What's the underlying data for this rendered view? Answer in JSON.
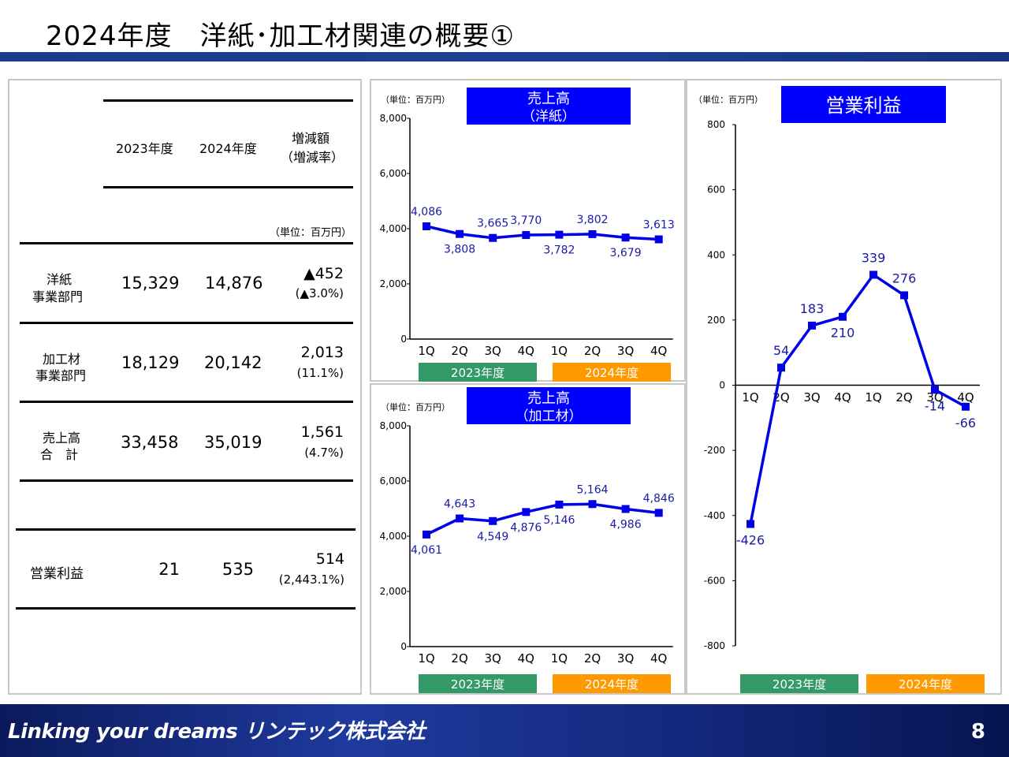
{
  "page": {
    "title": "2024年度　洋紙･加工材関連の概要①",
    "footer_tagline": "Linking your dreams  リンテック株式会社",
    "page_number": "8"
  },
  "table": {
    "header_2023": "2023年度",
    "header_2024": "2024年度",
    "header_change_1": "増減額",
    "header_change_2": "（増減率）",
    "unit": "（単位：百万円）",
    "rows": [
      {
        "label_1": "洋紙",
        "label_2": "事業部門",
        "v2023": "15,329",
        "v2024": "14,876",
        "change": "▲452",
        "rate": "(▲3.0%)"
      },
      {
        "label_1": "加工材",
        "label_2": "事業部門",
        "v2023": "18,129",
        "v2024": "20,142",
        "change": "2,013",
        "rate": "(11.1%)"
      },
      {
        "label_1": "売上高",
        "label_2": "合　計",
        "v2023": "33,458",
        "v2024": "35,019",
        "change": "1,561",
        "rate": "(4.7%)"
      }
    ],
    "op_row": {
      "label": "営業利益",
      "v2023": "21",
      "v2024": "535",
      "change": "514",
      "rate": "(2,443.1%)"
    }
  },
  "colors": {
    "series": "#0000e6",
    "label": "#1a1aa6",
    "title_box": "#0000ff",
    "fy2023_band": "#339966",
    "fy2024_band": "#ff9900",
    "title_bar": "#1b3f93"
  },
  "chart_data": [
    {
      "type": "line",
      "title_1": "売上高",
      "title_2": "（洋紙）",
      "unit": "（単位：百万円）",
      "x": [
        "1Q",
        "2Q",
        "3Q",
        "4Q",
        "1Q",
        "2Q",
        "3Q",
        "4Q"
      ],
      "values": [
        4086,
        3808,
        3665,
        3770,
        3782,
        3802,
        3679,
        3613
      ],
      "value_labels": [
        "4,086",
        "3,808",
        "3,665",
        "3,770",
        "3,782",
        "3,802",
        "3,679",
        "3,613"
      ],
      "label_pos": [
        "above",
        "below",
        "above",
        "above",
        "below",
        "above",
        "below",
        "above"
      ],
      "ylim": [
        0,
        8000
      ],
      "yticks": [
        0,
        2000,
        4000,
        6000,
        8000
      ],
      "ytick_labels": [
        "0",
        "2,000",
        "4,000",
        "6,000",
        "8,000"
      ],
      "fy_labels": [
        "2023年度",
        "2024年度"
      ]
    },
    {
      "type": "line",
      "title_1": "売上高",
      "title_2": "（加工材）",
      "unit": "（単位：百万円）",
      "x": [
        "1Q",
        "2Q",
        "3Q",
        "4Q",
        "1Q",
        "2Q",
        "3Q",
        "4Q"
      ],
      "values": [
        4061,
        4643,
        4549,
        4876,
        5146,
        5164,
        4986,
        4846
      ],
      "value_labels": [
        "4,061",
        "4,643",
        "4,549",
        "4,876",
        "5,146",
        "5,164",
        "4,986",
        "4,846"
      ],
      "label_pos": [
        "below",
        "above",
        "below",
        "below",
        "below",
        "above",
        "below",
        "above"
      ],
      "ylim": [
        0,
        8000
      ],
      "yticks": [
        0,
        2000,
        4000,
        6000,
        8000
      ],
      "ytick_labels": [
        "0",
        "2,000",
        "4,000",
        "6,000",
        "8,000"
      ],
      "fy_labels": [
        "2023年度",
        "2024年度"
      ]
    },
    {
      "type": "line",
      "title_1": "営業利益",
      "unit": "（単位：百万円）",
      "x": [
        "1Q",
        "2Q",
        "3Q",
        "4Q",
        "1Q",
        "2Q",
        "3Q",
        "4Q"
      ],
      "values": [
        -426,
        54,
        183,
        210,
        339,
        276,
        -14,
        -66
      ],
      "value_labels": [
        "-426",
        "54",
        "183",
        "210",
        "339",
        "276",
        "-14",
        "-66"
      ],
      "label_pos": [
        "below",
        "above",
        "above",
        "below",
        "above",
        "above",
        "below",
        "below"
      ],
      "ylim": [
        -800,
        800
      ],
      "yticks": [
        -800,
        -600,
        -400,
        -200,
        0,
        200,
        400,
        600,
        800
      ],
      "ytick_labels": [
        "-800",
        "-600",
        "-400",
        "-200",
        "0",
        "200",
        "400",
        "600",
        "800"
      ],
      "fy_labels": [
        "2023年度",
        "2024年度"
      ]
    }
  ]
}
